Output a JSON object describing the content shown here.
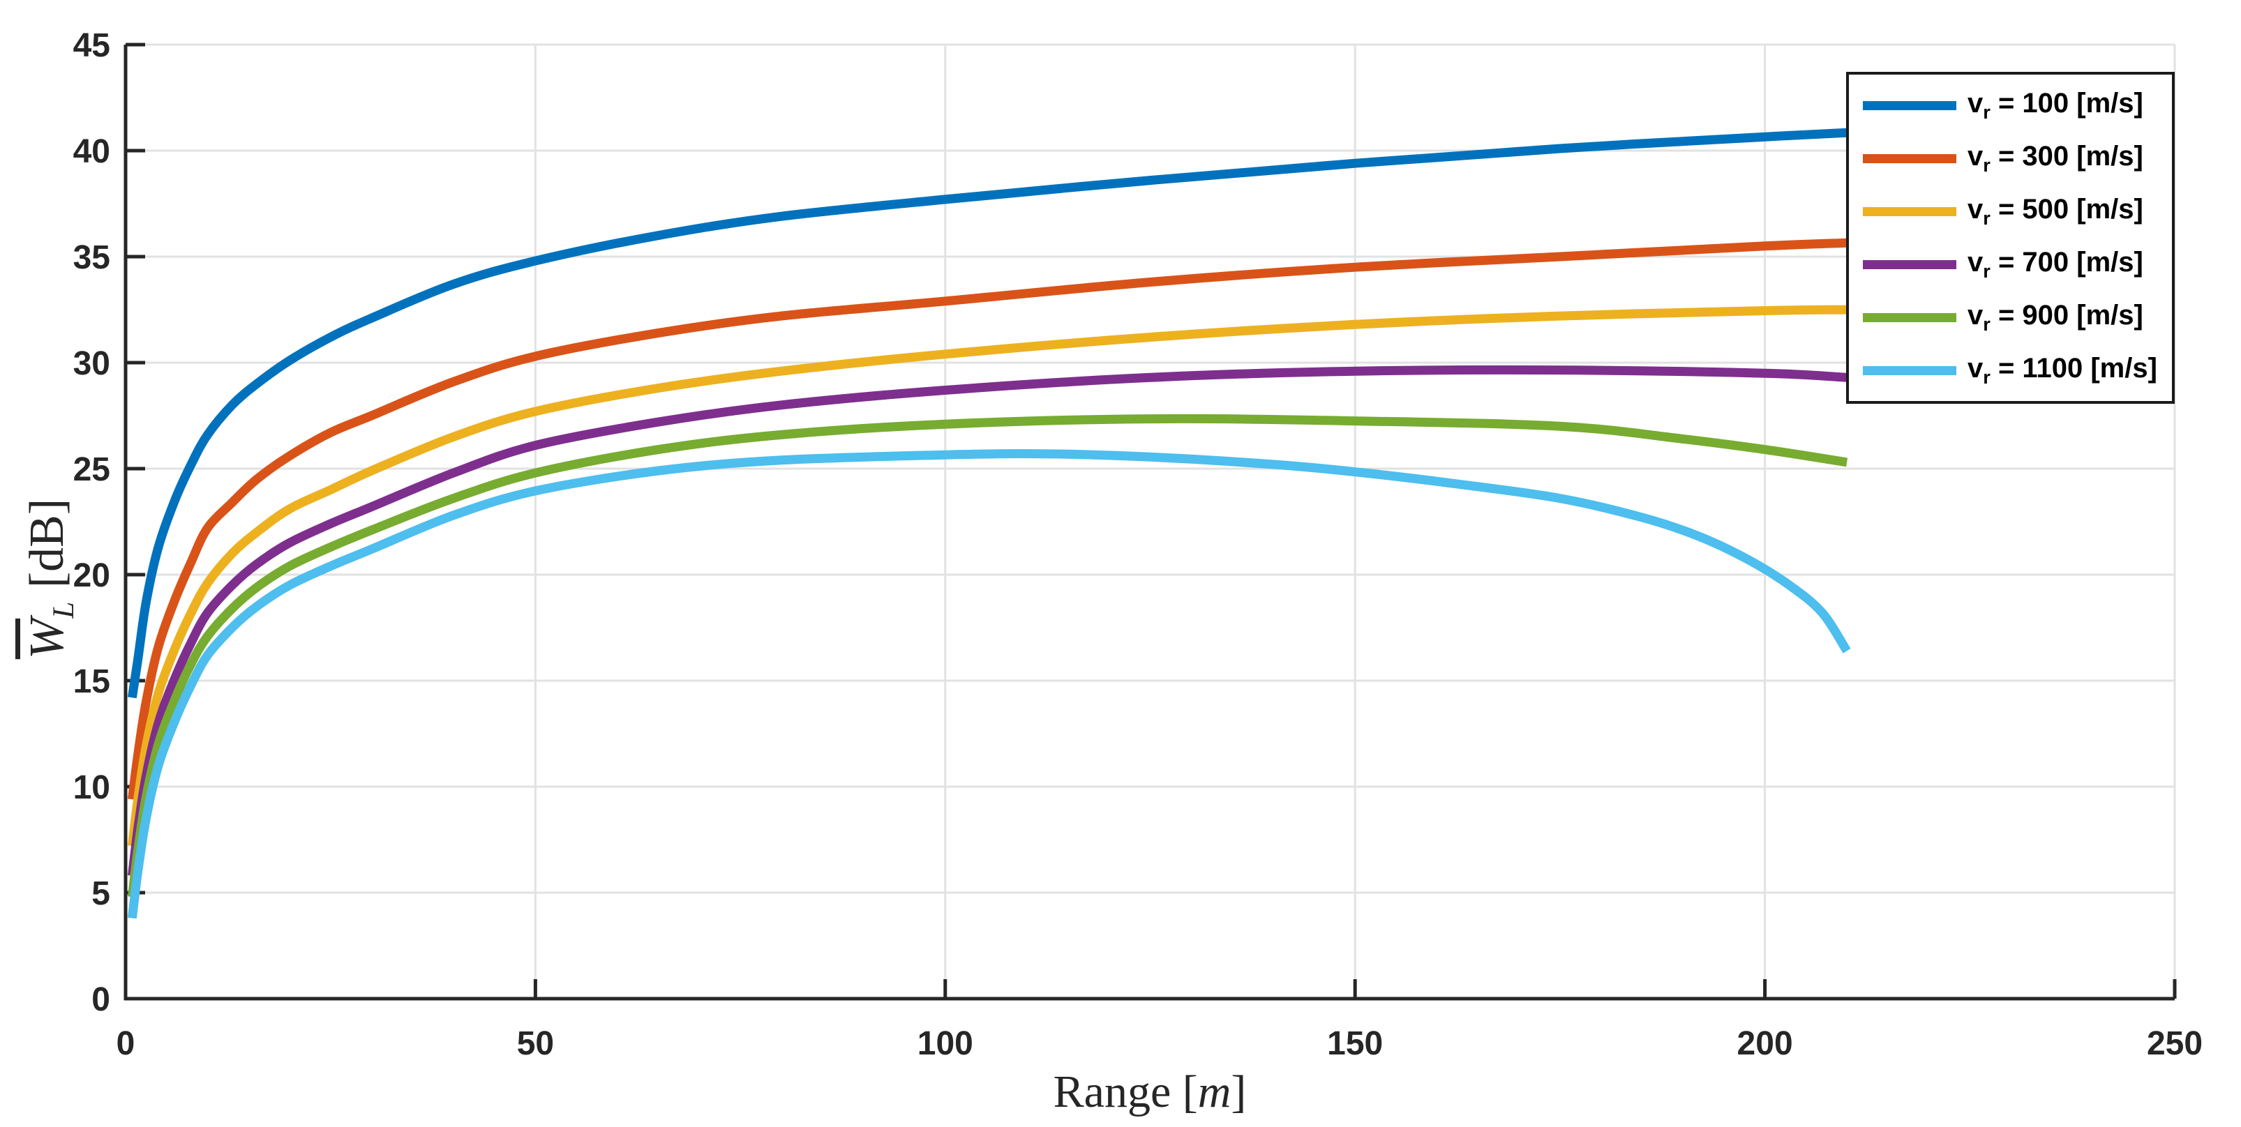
{
  "figure": {
    "background": "#ffffff",
    "axis_color": "#262626",
    "grid_color": "#e2e2e2"
  },
  "chart_data": {
    "type": "line",
    "title": "",
    "xlabel": {
      "name": "Range",
      "open": "[",
      "symbol": "m",
      "close": "]"
    },
    "ylabel": {
      "symbol": "W",
      "overline": true,
      "subscript": "L",
      "unit": "[dB]"
    },
    "xlim": [
      0,
      250
    ],
    "ylim": [
      0,
      45
    ],
    "xticks": [
      "0",
      "50",
      "100",
      "150",
      "200",
      "250"
    ],
    "yticks": [
      "0",
      "5",
      "10",
      "15",
      "20",
      "25",
      "30",
      "35",
      "40",
      "45"
    ],
    "grid": true,
    "legend_position": "northeast",
    "series": [
      {
        "name": "v_r = 100 [m/s]",
        "legend_sym": "v",
        "legend_sub": "r",
        "legend_value": "= 100 [m/s]",
        "color": "#0072BD",
        "points": [
          [
            0.8,
            14.2
          ],
          [
            1.5,
            16.0
          ],
          [
            2.5,
            18.7
          ],
          [
            4,
            21.3
          ],
          [
            6,
            23.5
          ],
          [
            8,
            25.2
          ],
          [
            10,
            26.6
          ],
          [
            13,
            28.0
          ],
          [
            16,
            29.0
          ],
          [
            20,
            30.1
          ],
          [
            25,
            31.2
          ],
          [
            30,
            32.1
          ],
          [
            40,
            33.7
          ],
          [
            50,
            34.8
          ],
          [
            65,
            36.0
          ],
          [
            80,
            36.9
          ],
          [
            100,
            37.7
          ],
          [
            125,
            38.6
          ],
          [
            150,
            39.4
          ],
          [
            175,
            40.1
          ],
          [
            200,
            40.65
          ],
          [
            210,
            40.85
          ]
        ]
      },
      {
        "name": "v_r = 300 [m/s]",
        "legend_sym": "v",
        "legend_sub": "r",
        "legend_value": "= 300 [m/s]",
        "color": "#D95319",
        "points": [
          [
            0.8,
            9.4
          ],
          [
            1.5,
            11.5
          ],
          [
            2.5,
            14.0
          ],
          [
            4,
            16.6
          ],
          [
            6,
            18.8
          ],
          [
            8,
            20.6
          ],
          [
            10,
            22.2
          ],
          [
            13,
            23.4
          ],
          [
            16,
            24.5
          ],
          [
            20,
            25.6
          ],
          [
            25,
            26.7
          ],
          [
            30,
            27.5
          ],
          [
            40,
            29.1
          ],
          [
            50,
            30.3
          ],
          [
            65,
            31.4
          ],
          [
            80,
            32.2
          ],
          [
            100,
            32.9
          ],
          [
            125,
            33.8
          ],
          [
            150,
            34.5
          ],
          [
            175,
            35.0
          ],
          [
            200,
            35.5
          ],
          [
            210,
            35.65
          ]
        ]
      },
      {
        "name": "v_r = 500 [m/s]",
        "legend_sym": "v",
        "legend_sub": "r",
        "legend_value": "= 500 [m/s]",
        "color": "#EDB120",
        "points": [
          [
            0.8,
            7.2
          ],
          [
            1.5,
            9.4
          ],
          [
            2.5,
            11.9
          ],
          [
            4,
            14.4
          ],
          [
            6,
            16.5
          ],
          [
            8,
            18.2
          ],
          [
            10,
            19.6
          ],
          [
            13,
            21.0
          ],
          [
            16,
            22.0
          ],
          [
            20,
            23.1
          ],
          [
            25,
            24.0
          ],
          [
            30,
            24.9
          ],
          [
            40,
            26.5
          ],
          [
            50,
            27.7
          ],
          [
            65,
            28.8
          ],
          [
            80,
            29.6
          ],
          [
            100,
            30.4
          ],
          [
            125,
            31.2
          ],
          [
            150,
            31.8
          ],
          [
            175,
            32.2
          ],
          [
            200,
            32.45
          ],
          [
            210,
            32.5
          ]
        ]
      },
      {
        "name": "v_r = 700 [m/s]",
        "legend_sym": "v",
        "legend_sub": "r",
        "legend_value": "= 700 [m/s]",
        "color": "#7E2F8E",
        "points": [
          [
            0.8,
            5.8
          ],
          [
            1.5,
            8.0
          ],
          [
            2.5,
            10.5
          ],
          [
            4,
            13.0
          ],
          [
            6,
            15.1
          ],
          [
            8,
            16.8
          ],
          [
            10,
            18.2
          ],
          [
            13,
            19.5
          ],
          [
            16,
            20.5
          ],
          [
            20,
            21.5
          ],
          [
            25,
            22.4
          ],
          [
            30,
            23.2
          ],
          [
            40,
            24.8
          ],
          [
            50,
            26.1
          ],
          [
            65,
            27.2
          ],
          [
            80,
            28.0
          ],
          [
            100,
            28.7
          ],
          [
            125,
            29.3
          ],
          [
            150,
            29.6
          ],
          [
            175,
            29.65
          ],
          [
            200,
            29.5
          ],
          [
            210,
            29.3
          ]
        ]
      },
      {
        "name": "v_r = 900 [m/s]",
        "legend_sym": "v",
        "legend_sub": "r",
        "legend_value": "= 900 [m/s]",
        "color": "#77AC30",
        "points": [
          [
            0.8,
            4.8
          ],
          [
            1.5,
            7.0
          ],
          [
            2.5,
            9.5
          ],
          [
            4,
            12.0
          ],
          [
            6,
            14.1
          ],
          [
            8,
            15.8
          ],
          [
            10,
            17.1
          ],
          [
            13,
            18.4
          ],
          [
            16,
            19.4
          ],
          [
            20,
            20.4
          ],
          [
            25,
            21.3
          ],
          [
            30,
            22.1
          ],
          [
            40,
            23.6
          ],
          [
            50,
            24.8
          ],
          [
            65,
            25.9
          ],
          [
            80,
            26.6
          ],
          [
            100,
            27.1
          ],
          [
            125,
            27.35
          ],
          [
            150,
            27.25
          ],
          [
            175,
            27.0
          ],
          [
            190,
            26.4
          ],
          [
            200,
            25.9
          ],
          [
            210,
            25.3
          ]
        ]
      },
      {
        "name": "v_r = 1100 [m/s]",
        "legend_sym": "v",
        "legend_sub": "r",
        "legend_value": "= 1100 [m/s]",
        "color": "#4DBEEE",
        "points": [
          [
            0.8,
            3.8
          ],
          [
            1.5,
            6.0
          ],
          [
            2.5,
            8.5
          ],
          [
            4,
            11.0
          ],
          [
            6,
            13.1
          ],
          [
            8,
            14.8
          ],
          [
            10,
            16.2
          ],
          [
            13,
            17.5
          ],
          [
            16,
            18.5
          ],
          [
            20,
            19.5
          ],
          [
            25,
            20.4
          ],
          [
            30,
            21.2
          ],
          [
            40,
            22.8
          ],
          [
            50,
            23.95
          ],
          [
            65,
            24.9
          ],
          [
            80,
            25.4
          ],
          [
            100,
            25.65
          ],
          [
            112,
            25.7
          ],
          [
            125,
            25.55
          ],
          [
            140,
            25.2
          ],
          [
            150,
            24.85
          ],
          [
            162,
            24.3
          ],
          [
            175,
            23.6
          ],
          [
            185,
            22.7
          ],
          [
            192,
            21.8
          ],
          [
            198,
            20.7
          ],
          [
            203,
            19.5
          ],
          [
            207,
            18.2
          ],
          [
            210,
            16.4
          ]
        ]
      }
    ]
  }
}
